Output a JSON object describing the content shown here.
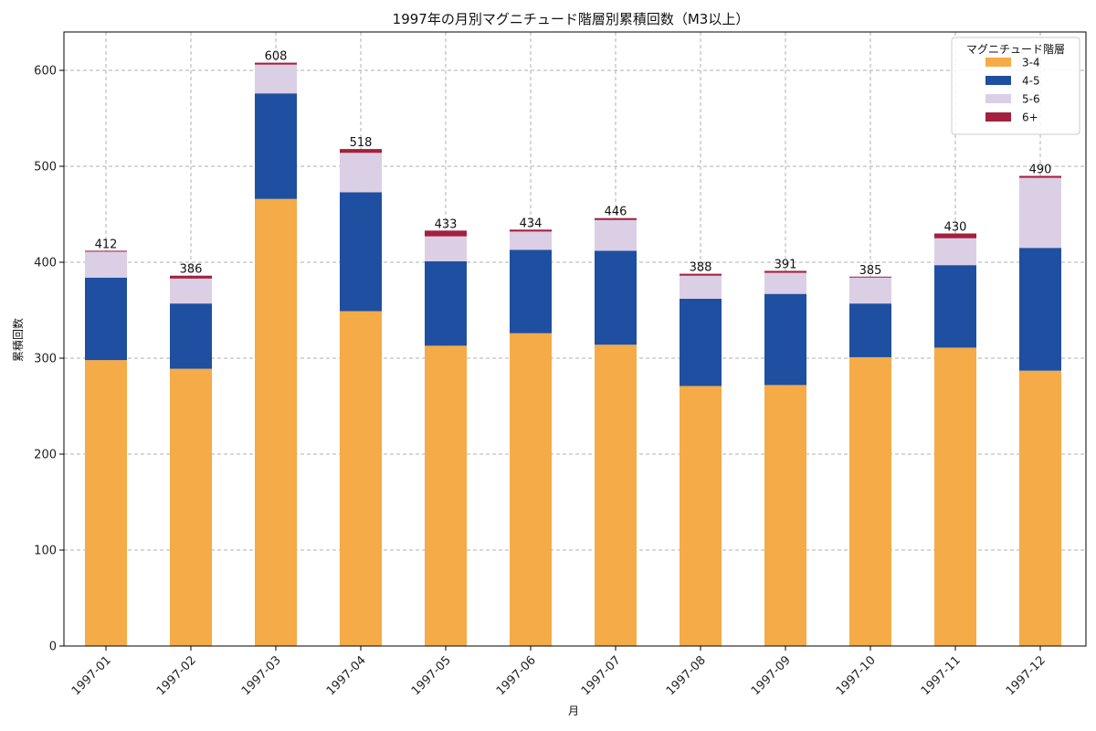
{
  "chart_data": {
    "type": "bar",
    "stacked": true,
    "title": "1997年の月別マグニチュード階層別累積回数（M3以上）",
    "xlabel": "月",
    "ylabel": "累積回数",
    "ylim": [
      0,
      640
    ],
    "yticks": [
      0,
      100,
      200,
      300,
      400,
      500,
      600
    ],
    "grid": true,
    "legend_title": "マグニチュード階層",
    "legend_position": "top-right",
    "categories": [
      "1997-01",
      "1997-02",
      "1997-03",
      "1997-04",
      "1997-05",
      "1997-06",
      "1997-07",
      "1997-08",
      "1997-09",
      "1997-10",
      "1997-11",
      "1997-12"
    ],
    "series": [
      {
        "name": "3-4",
        "color": "#f5ab47",
        "values": [
          298,
          289,
          466,
          349,
          313,
          326,
          314,
          271,
          272,
          301,
          311,
          287
        ]
      },
      {
        "name": "4-5",
        "color": "#1f4fa0",
        "values": [
          86,
          68,
          110,
          124,
          88,
          87,
          98,
          91,
          95,
          56,
          86,
          128
        ]
      },
      {
        "name": "5-6",
        "color": "#dbcfe5",
        "values": [
          27,
          26,
          30,
          41,
          26,
          19,
          32,
          24,
          22,
          27,
          28,
          73
        ]
      },
      {
        "name": "6+",
        "color": "#a3203f",
        "values": [
          1,
          3,
          2,
          4,
          6,
          2,
          2,
          2,
          2,
          1,
          5,
          2
        ]
      }
    ],
    "totals": [
      "412",
      "386",
      "608",
      "518",
      "433",
      "434",
      "446",
      "388",
      "391",
      "385",
      "430",
      "490"
    ]
  }
}
